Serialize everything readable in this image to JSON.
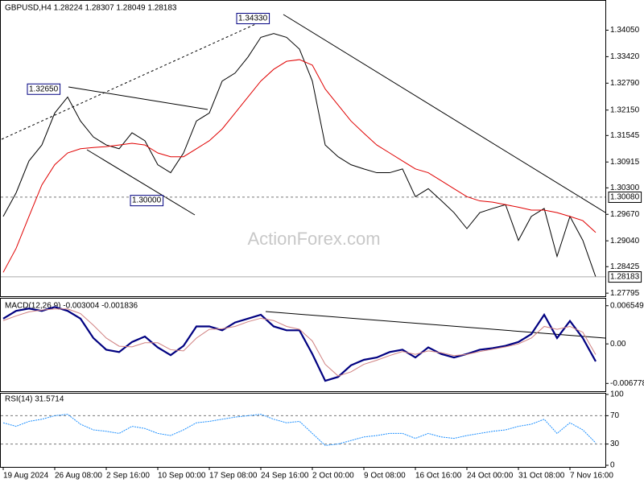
{
  "chart_data": [
    {
      "type": "line",
      "title": "GBPUSD,H4  1.28224 1.28307 1.28049 1.28183",
      "watermark": "ActionForex.com",
      "categories": [
        "19 Aug 2024",
        null,
        null,
        null,
        "26 Aug 08:00",
        null,
        null,
        null,
        "2 Sep 16:00",
        null,
        null,
        null,
        "10 Sep 00:00",
        null,
        null,
        null,
        "17 Sep 08:00",
        null,
        null,
        null,
        "24 Sep 16:00",
        null,
        null,
        null,
        "2 Oct 00:00",
        null,
        null,
        null,
        "9 Oct 08:00",
        null,
        null,
        null,
        "16 Oct 16:00",
        null,
        null,
        null,
        "24 Oct 00:00",
        null,
        null,
        null,
        "31 Oct 08:00",
        null,
        null,
        null,
        "7 Nov 16:00",
        null,
        null
      ],
      "series": [
        {
          "color": "#000000",
          "values": [
            1.2962,
            1.3018,
            1.3094,
            1.3132,
            1.3208,
            1.3246,
            1.3189,
            1.3151,
            1.3132,
            1.3123,
            1.3161,
            1.3142,
            1.3085,
            1.3066,
            1.3113,
            1.3189,
            1.3208,
            1.3284,
            1.3303,
            1.3341,
            1.3388,
            1.3397,
            1.3388,
            1.336,
            1.3284,
            1.3132,
            1.3104,
            1.3085,
            1.3075,
            1.3066,
            1.3066,
            1.3075,
            1.3009,
            1.3028,
            1.3,
            1.2971,
            1.2933,
            1.2971,
            1.2981,
            1.299,
            1.2905,
            1.2962,
            1.2981,
            1.2867,
            1.2962,
            1.2905,
            1.28183
          ]
        },
        {
          "color": "#e00000",
          "values": [
            1.2829,
            1.2886,
            1.2962,
            1.3037,
            1.3085,
            1.3113,
            1.3123,
            1.3126,
            1.3128,
            1.3132,
            1.3136,
            1.3132,
            1.3113,
            1.3104,
            1.3104,
            1.3123,
            1.3142,
            1.317,
            1.3208,
            1.3246,
            1.3284,
            1.3312,
            1.3331,
            1.3335,
            1.3322,
            1.3265,
            1.3227,
            1.3189,
            1.316,
            1.3132,
            1.3113,
            1.3094,
            1.3075,
            1.3066,
            1.3047,
            1.3028,
            1.3009,
            1.2999,
            1.2996,
            1.299,
            1.2984,
            1.2977,
            1.2977,
            1.2971,
            1.2962,
            1.2952,
            1.2924
          ]
        }
      ],
      "ylim": [
        1.2776,
        1.3473
      ],
      "yticks": [
        {
          "value": 1.3405,
          "label": "1.34050"
        },
        {
          "value": 1.3342,
          "label": "1.33420"
        },
        {
          "value": 1.3279,
          "label": "1.32790"
        },
        {
          "value": 1.3215,
          "label": "1.32150"
        },
        {
          "value": 1.31545,
          "label": "1.31545"
        },
        {
          "value": 1.30915,
          "label": "1.30915"
        },
        {
          "value": 1.303,
          "label": "1.30300"
        },
        {
          "value": 1.2967,
          "label": "1.29670"
        },
        {
          "value": 1.2904,
          "label": "1.29040"
        },
        {
          "value": 1.28425,
          "label": "1.28425"
        },
        {
          "value": 1.27795,
          "label": "1.27795"
        }
      ],
      "levels": [
        {
          "value": 1.3008,
          "label": "1.30080"
        }
      ],
      "annotations": [
        {
          "value": 1.3265,
          "label": "1.32650"
        },
        {
          "value": 1.3433,
          "label": "1.34330"
        },
        {
          "value": 1.3,
          "label": "1.30000"
        }
      ]
    },
    {
      "type": "line",
      "title": "MACD(12,26,9) -0.003004 -0.001836",
      "series": [
        {
          "color": "#000080",
          "values": [
            0.00433,
            0.00566,
            0.00606,
            0.00566,
            0.00633,
            0.00566,
            0.00433,
            0.001,
            -0.001,
            -0.0014,
            0.00033,
            0.00127,
            -0.0006,
            -0.00193,
            -0.00033,
            0.003,
            0.003,
            0.00233,
            0.00367,
            0.00433,
            0.005,
            0.003,
            0.00233,
            0.00233,
            -0.00173,
            -0.00633,
            -0.00566,
            -0.00367,
            -0.00273,
            -0.00233,
            -0.0014,
            -0.001,
            -0.00233,
            -0.0006,
            -0.00173,
            -0.00233,
            -0.00173,
            -0.001,
            -0.00073,
            -0.00033,
            0.00033,
            0.00167,
            0.005,
            0.001,
            0.00393,
            0.001,
            -0.003004
          ]
        },
        {
          "color": "#d08080",
          "values": [
            0.004,
            0.0048,
            0.0055,
            0.0058,
            0.006,
            0.006,
            0.0052,
            0.0032,
            0.001,
            -0.0004,
            -0.0005,
            0.0002,
            0.0002,
            -0.001,
            -0.0012,
            0.001,
            0.0025,
            0.0026,
            0.003,
            0.0038,
            0.0044,
            0.004,
            0.003,
            0.0025,
            0.0005,
            -0.0035,
            -0.0055,
            -0.0048,
            -0.0035,
            -0.0028,
            -0.002,
            -0.0013,
            -0.0018,
            -0.0012,
            -0.0015,
            -0.002,
            -0.0018,
            -0.0013,
            -0.0009,
            -0.0005,
            0.0,
            0.001,
            0.003,
            0.0025,
            0.003,
            0.002,
            -0.001836
          ]
        }
      ],
      "ylim": [
        -0.00784,
        0.00762
      ],
      "yticks": [
        0.006549,
        {
          "value": 0,
          "label": "0.00"
        },
        -0.006778
      ]
    },
    {
      "type": "line",
      "title": "RSI(14) 31.5714",
      "series": [
        {
          "color": "#1e90ff",
          "values": [
            60,
            55,
            62,
            65,
            70,
            72,
            58,
            50,
            48,
            45,
            55,
            52,
            45,
            42,
            50,
            60,
            62,
            65,
            68,
            70,
            72,
            65,
            60,
            62,
            45,
            28,
            30,
            35,
            40,
            42,
            45,
            45,
            38,
            45,
            40,
            38,
            42,
            45,
            48,
            50,
            55,
            58,
            65,
            45,
            60,
            50,
            31.5714
          ]
        }
      ],
      "ylim": [
        0,
        100
      ],
      "yticks": [
        100,
        70,
        30,
        0
      ],
      "levels": [
        70,
        30
      ]
    }
  ]
}
